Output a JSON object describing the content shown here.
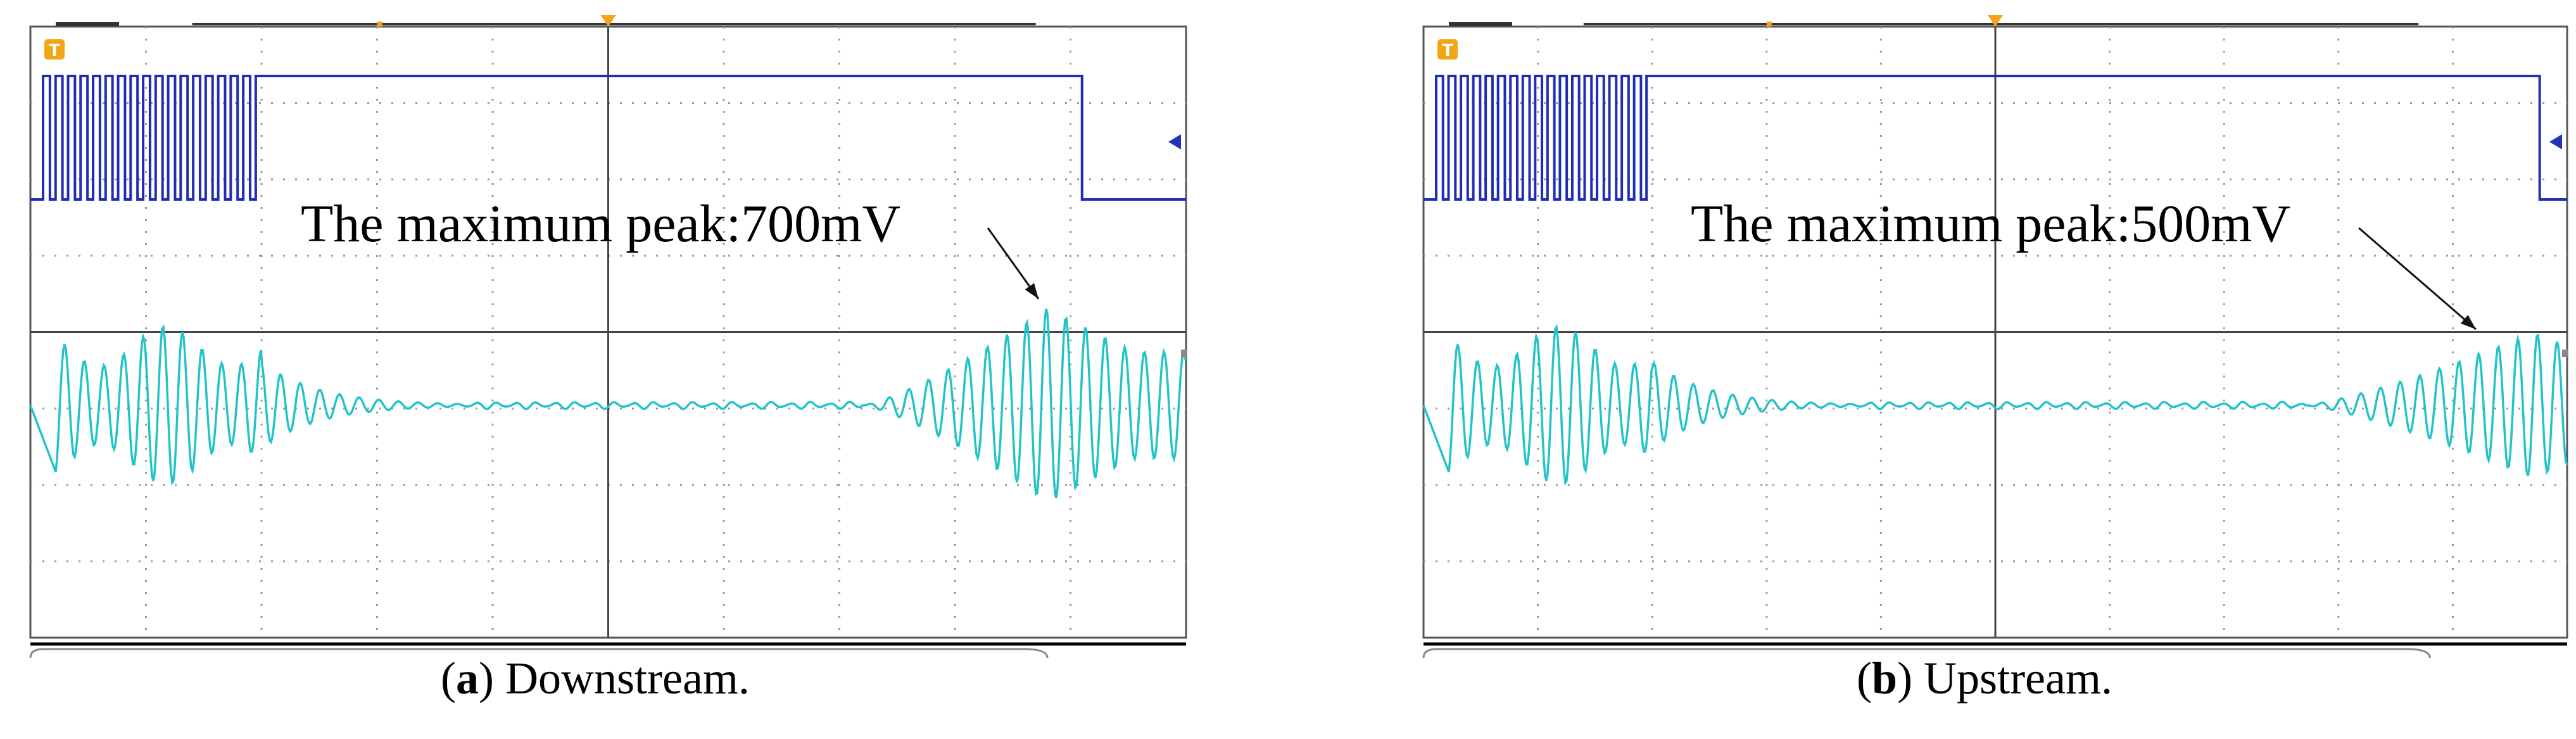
{
  "chart_data": [
    {
      "type": "line",
      "title": "",
      "caption_label": "a",
      "caption_text": "Downstream.",
      "annotation": "The maximum peak:700mV",
      "peak_mV": 700,
      "legend": "none",
      "grid": true,
      "series": [
        {
          "color": "#1f2db4",
          "kind": "square",
          "burst_end": 0.195,
          "high_end": 0.91
        },
        {
          "color": "#22c3c9",
          "kind": "echo",
          "tx_end": 0.2,
          "rx_start": 0.72,
          "rx_peak": 0.88
        }
      ]
    },
    {
      "type": "line",
      "title": "",
      "caption_label": "b",
      "caption_text": "Upstream.",
      "annotation": "The maximum peak:500mV",
      "peak_mV": 500,
      "legend": "none",
      "grid": true,
      "series": [
        {
          "color": "#1f2db4",
          "kind": "square",
          "burst_end": 0.195,
          "high_end": 0.976
        },
        {
          "color": "#22c3c9",
          "kind": "echo",
          "tx_end": 0.2,
          "rx_start": 0.77,
          "rx_peak": 0.97
        }
      ]
    }
  ],
  "colors": {
    "grid": "#9a9a9a",
    "frame": "#555555",
    "trigger": "#f2a516",
    "marker": "#2233bb"
  },
  "icons": {
    "trigger": "trigger-icon",
    "level_marker": "ch1-level-marker-icon"
  }
}
